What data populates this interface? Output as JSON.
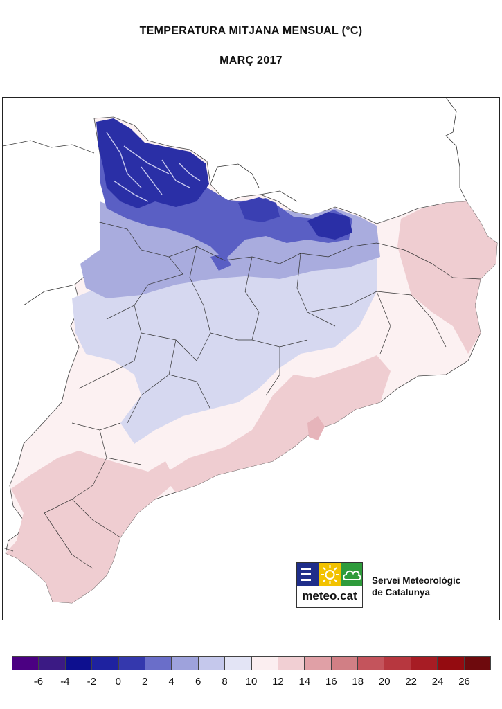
{
  "title": "TEMPERATURA MITJANA MENSUAL (°C)",
  "subtitle": "MARÇ 2017",
  "logo": {
    "text": "meteo.cat",
    "icons": [
      "bars-icon",
      "sun-icon",
      "cloud-icon"
    ],
    "colors": [
      "#1f2e8a",
      "#f2c200",
      "#2e9b3b"
    ]
  },
  "organization": {
    "line1": "Servei Meteorològic",
    "line2": "de Catalunya"
  },
  "legend": {
    "colors": [
      "#4b0082",
      "#3b1a84",
      "#0d0f8f",
      "#1e22a0",
      "#3438ad",
      "#6a6ec9",
      "#9ea2dc",
      "#c5c8ec",
      "#e3e4f5",
      "#fbeef0",
      "#f1cfd3",
      "#e0a0a6",
      "#d17f85",
      "#c4545c",
      "#b7373f",
      "#a71c24",
      "#940b10",
      "#6e0a0d"
    ],
    "labels": [
      "-6",
      "-4",
      "-2",
      "0",
      "2",
      "4",
      "6",
      "8",
      "10",
      "12",
      "14",
      "16",
      "18",
      "20",
      "22",
      "24",
      "26"
    ]
  },
  "map": {
    "region": "Catalunya",
    "colors": {
      "mountain_high": "#2a2fa6",
      "mountain_mid": "#5a5fc4",
      "cold": "#a9acde",
      "cool": "#d6d8f0",
      "mild": "#fcf1f2",
      "warm": "#efcdd1",
      "warmer": "#e6b4ba"
    }
  }
}
